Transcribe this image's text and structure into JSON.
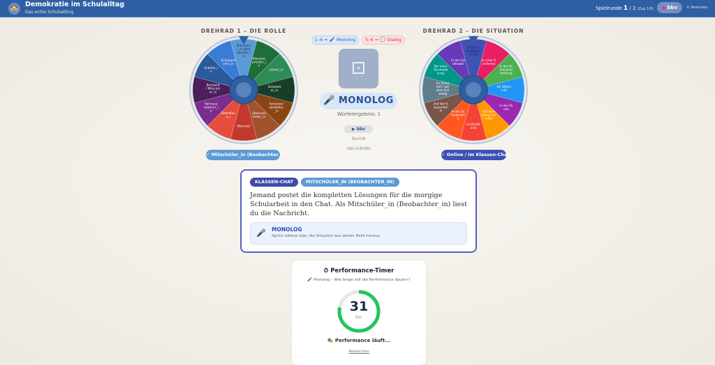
{
  "header": {
    "title": "Demokratie im Schulalltag",
    "subtitle": "Das echte Schulsetting",
    "logo_icon": "school-icon",
    "round_label": "Spielrunde",
    "round_current": "1",
    "round_total": "/ 2",
    "turn": "(Zug 1/6)",
    "user": "bbv",
    "end_label": "✕ Beenden"
  },
  "wheel1": {
    "title": "DREHRAD 1 – DIE ROLLE",
    "result": "✓ Mitschüler_in (Beobachter_in)",
    "result_color": "#5b9bd5",
    "segments": [
      {
        "label": "Mitschüler_in (Beobachter_in)",
        "color": "#5b9bd5"
      },
      {
        "label": "Klassensprecher_in",
        "color": "#1e6e3a"
      },
      {
        "label": "Lehrer_in",
        "color": "#2e8b57"
      },
      {
        "label": "Schulleiter_in",
        "color": "#1a3d2a"
      },
      {
        "label": "Schulsozialarbeiter_in",
        "color": "#8b4513"
      },
      {
        "label": "Elternvertreter_in",
        "color": "#a0522d"
      },
      {
        "label": "Elternteil",
        "color": "#c0392b"
      },
      {
        "label": "Betroffene_r",
        "color": "#e74c3c"
      },
      {
        "label": "Vertrauenslehrer_in",
        "color": "#7b2d8e"
      },
      {
        "label": "Beistand / Mitschüler_in",
        "color": "#4a1f5c"
      },
      {
        "label": "Schüler_in",
        "color": "#2a5a9a"
      },
      {
        "label": "Schulsprecher_in",
        "color": "#3a7bd5"
      }
    ]
  },
  "wheel2": {
    "title": "DREHRAD 2 – DIE SITUATION",
    "result": "✓ Online / im Klassen-Chat",
    "result_color": "#3f51b5",
    "segments": [
      {
        "label": "Online / im Klassen-Chat",
        "color": "#3f51b5"
      },
      {
        "label": "In einer Konferenz",
        "color": "#e91e63"
      },
      {
        "label": "In der Schulversammlung",
        "color": "#4caf50"
      },
      {
        "label": "Im Unterricht",
        "color": "#2196f3"
      },
      {
        "label": "In der Pause",
        "color": "#9c27b0"
      },
      {
        "label": "Auf dem Gang / Korridor",
        "color": "#ff9800"
      },
      {
        "label": "Im Direktorat",
        "color": "#f44336"
      },
      {
        "label": "In der Schulkantine",
        "color": "#ff5722"
      },
      {
        "label": "Auf der Klassenfahrt",
        "color": "#795548"
      },
      {
        "label": "Im Schulhof / auf dem Schulweg",
        "color": "#607d8b"
      },
      {
        "label": "Bei einer Veranstaltung",
        "color": "#009688"
      },
      {
        "label": "In der Garderobe",
        "color": "#673ab7"
      }
    ]
  },
  "dice": {
    "legend_monolog": "1–4 = 🎤 Monolog",
    "legend_dialog": "5–6 = 💬 Dialog",
    "mode": "🎤 MONOLOG",
    "result": "Würfelergebnis: 1",
    "play": "▶ bbv",
    "line1": "bvcvb",
    "line2": "vbcvcbvbc"
  },
  "card": {
    "tag_situation": "KLASSEN-CHAT",
    "tag_role": "MITSCHÜLER_IN (BEOBACHTER_IN)",
    "text": "Jemand postet die kompletten Lösungen für die morgige Schularbeit in den Chat. Als Mitschüler_in (Beobachter_in) liest du die Nachricht.",
    "mode_title": "MONOLOG",
    "mode_desc": "Sprich alleine über die Situation aus deiner Rolle heraus.",
    "mode_icon": "microphone-icon"
  },
  "timer": {
    "title": "⏱ Performance-Timer",
    "subtitle": "🎤 Monolog – Wie lange soll die Performance dauern?",
    "seconds": "31",
    "unit": "Sek.",
    "progress": 0.78,
    "status": "Performance läuft...",
    "cancel": "Abbrechen",
    "color": "#22c55e"
  }
}
